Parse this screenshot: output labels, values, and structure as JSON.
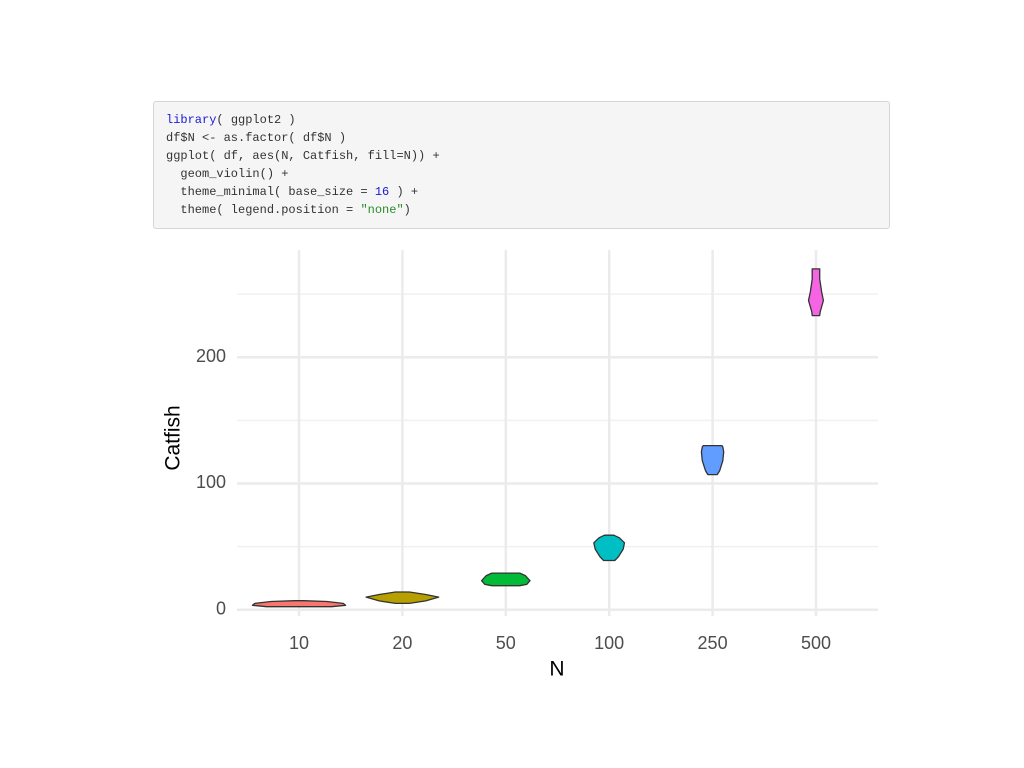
{
  "code": {
    "lines": [
      [
        {
          "text": "library",
          "color": "#1a1ad6"
        },
        {
          "text": "( ggplot2 )",
          "color": "#333333"
        }
      ],
      [
        {
          "text": "df$N <- as.factor( df$N )",
          "color": "#333333"
        }
      ],
      [
        {
          "text": "ggplot( df, aes(N, Catfish, fill=N)) +",
          "color": "#333333"
        }
      ],
      [
        {
          "text": "  geom_violin() +",
          "color": "#333333"
        }
      ],
      [
        {
          "text": "  theme_minimal( base_size = ",
          "color": "#333333"
        },
        {
          "text": "16",
          "color": "#1a1ad6"
        },
        {
          "text": " ) +",
          "color": "#333333"
        }
      ],
      [
        {
          "text": "  theme( legend.position = ",
          "color": "#333333"
        },
        {
          "text": "\"none\"",
          "color": "#2a8a2a"
        },
        {
          "text": ")",
          "color": "#333333"
        }
      ]
    ]
  },
  "chart_data": {
    "type": "violin",
    "x_label": "N",
    "y_label": "Catfish",
    "categories": [
      "10",
      "20",
      "50",
      "100",
      "250",
      "500"
    ],
    "violins": [
      {
        "color": "#F8766D",
        "y": [
          2.4,
          3.5,
          5,
          6.5,
          7.1
        ],
        "width": [
          0.7,
          1.0,
          0.95,
          0.6,
          0.1
        ]
      },
      {
        "color": "#B79F00",
        "y": [
          5,
          7,
          10,
          12,
          14
        ],
        "width": [
          0.15,
          0.5,
          0.78,
          0.5,
          0.15
        ]
      },
      {
        "color": "#00BA38",
        "y": [
          19,
          20,
          23,
          27,
          29
        ],
        "width": [
          0.3,
          0.45,
          0.52,
          0.42,
          0.3
        ]
      },
      {
        "color": "#00BFC4",
        "y": [
          39,
          42,
          48,
          53,
          57,
          59
        ],
        "width": [
          0.12,
          0.2,
          0.3,
          0.33,
          0.22,
          0.1
        ]
      },
      {
        "color": "#619CFF",
        "y": [
          107,
          110,
          118,
          125,
          129,
          130
        ],
        "width": [
          0.1,
          0.15,
          0.22,
          0.24,
          0.22,
          0.2
        ]
      },
      {
        "color": "#F564E3",
        "y": [
          233,
          236,
          245,
          252,
          262,
          270
        ],
        "width": [
          0.08,
          0.09,
          0.16,
          0.12,
          0.08,
          0.08
        ]
      }
    ],
    "ylim": [
      -5,
      285
    ],
    "yticks": [
      0,
      100,
      200
    ],
    "minor_yticks": [
      50,
      150,
      250
    ],
    "grid": true
  }
}
